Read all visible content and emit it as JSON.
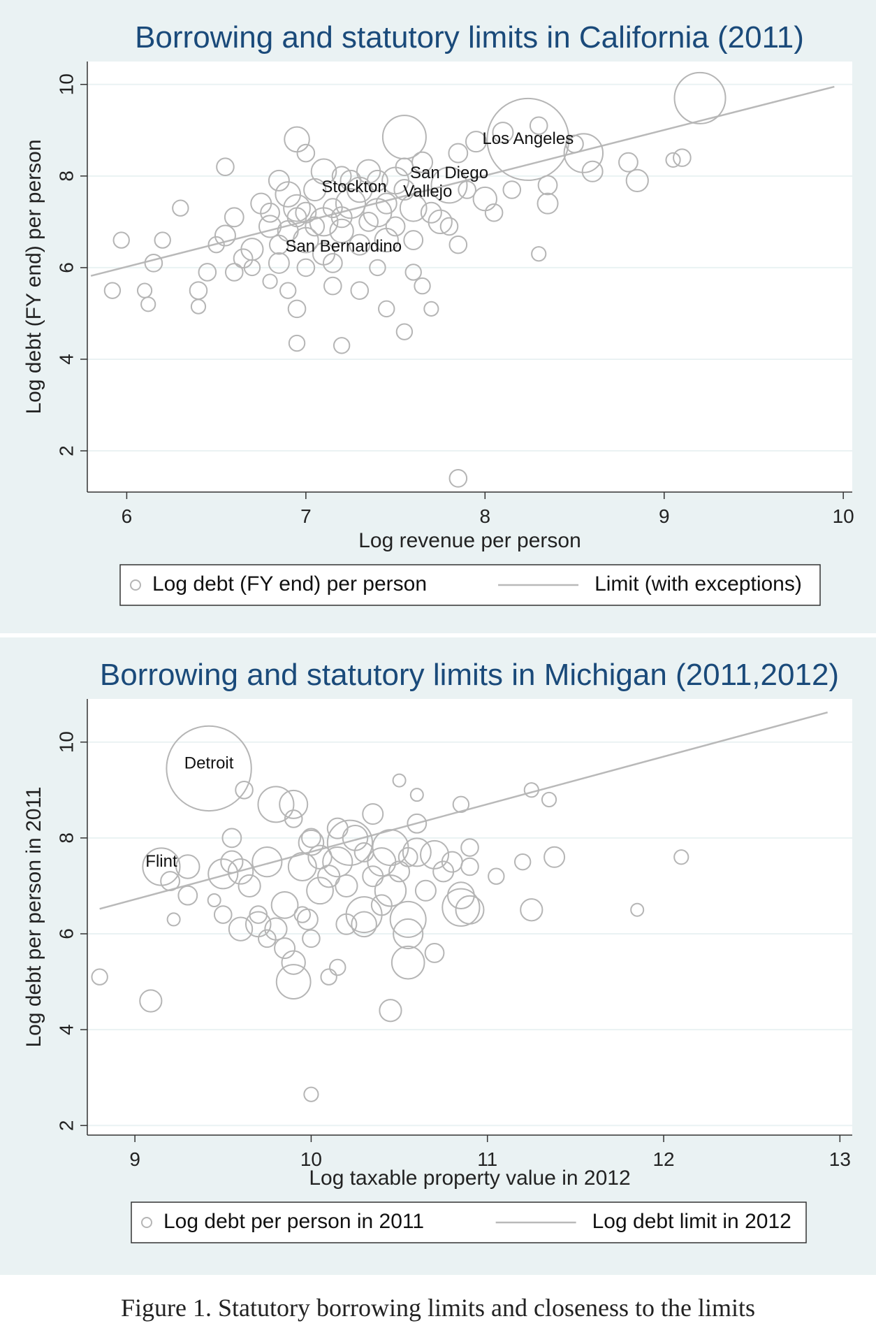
{
  "figure_caption": "Figure 1. Statutory borrowing limits and closeness to the limits",
  "chart_data": [
    {
      "type": "scatter",
      "title": "Borrowing and statutory limits in California (2011)",
      "xlabel": "Log revenue per person",
      "ylabel": "Log debt (FY end) per person",
      "xlim": [
        5.78,
        10.05
      ],
      "ylim": [
        1.1,
        10.5
      ],
      "xticks": [
        "6",
        "7",
        "8",
        "9",
        "10"
      ],
      "yticks": [
        "2",
        "4",
        "6",
        "8",
        "10"
      ],
      "grid": true,
      "legend": {
        "placement": "bottom",
        "entries": [
          "Log debt (FY end) per person",
          "Limit (with exceptions)"
        ]
      },
      "colors": {
        "marker": "#b5b5b5",
        "line": "#b9b9b9",
        "background": "#eaf2f3",
        "plot": "#ffffff"
      },
      "series": [
        {
          "name": "Log debt (FY end) per person",
          "marker": "hollow-circle-sized",
          "points": [
            [
              8.24,
              8.8,
              5
            ],
            [
              9.2,
              9.7,
              3
            ],
            [
              7.55,
              8.85,
              2.5
            ],
            [
              8.55,
              8.5,
              2.2
            ],
            [
              7.8,
              7.8,
              2
            ],
            [
              7.25,
              7.4,
              1.6
            ],
            [
              7.1,
              7.0,
              1.5
            ],
            [
              6.95,
              7.3,
              1.4
            ],
            [
              7.4,
              7.2,
              1.5
            ],
            [
              7.6,
              7.3,
              1.4
            ],
            [
              7.5,
              7.9,
              1.4
            ],
            [
              7.1,
              8.1,
              1.3
            ],
            [
              6.9,
              7.6,
              1.3
            ],
            [
              7.3,
              7.7,
              1.3
            ],
            [
              7.0,
              6.6,
              1.3
            ],
            [
              7.2,
              6.8,
              1.2
            ],
            [
              7.45,
              6.6,
              1.2
            ],
            [
              7.75,
              7.0,
              1.2
            ],
            [
              6.95,
              8.8,
              1.3
            ],
            [
              8.85,
              7.9,
              1.1
            ],
            [
              8.0,
              7.5,
              1.2
            ],
            [
              8.35,
              7.4,
              1.0
            ],
            [
              8.6,
              8.1,
              1.0
            ],
            [
              8.8,
              8.3,
              0.9
            ],
            [
              9.1,
              8.4,
              0.8
            ],
            [
              7.1,
              6.3,
              1.1
            ],
            [
              6.85,
              6.1,
              1.0
            ],
            [
              6.7,
              6.4,
              1.1
            ],
            [
              6.55,
              6.7,
              1.0
            ],
            [
              6.8,
              6.9,
              1.1
            ],
            [
              6.6,
              7.1,
              0.9
            ],
            [
              6.75,
              7.4,
              1.0
            ],
            [
              6.85,
              7.9,
              1.0
            ],
            [
              7.05,
              7.7,
              1.1
            ],
            [
              7.35,
              8.1,
              1.2
            ],
            [
              7.65,
              8.3,
              1.0
            ],
            [
              7.85,
              8.5,
              0.9
            ],
            [
              7.95,
              8.75,
              1.0
            ],
            [
              8.1,
              8.95,
              1.0
            ],
            [
              8.3,
              9.1,
              0.8
            ],
            [
              7.2,
              7.1,
              1.0
            ],
            [
              7.3,
              6.5,
              1.0
            ],
            [
              7.15,
              6.1,
              0.9
            ],
            [
              7.6,
              6.6,
              0.9
            ],
            [
              7.7,
              7.2,
              1.0
            ],
            [
              7.45,
              7.4,
              1.0
            ],
            [
              7.25,
              7.9,
              1.0
            ],
            [
              7.55,
              7.7,
              1.0
            ],
            [
              7.0,
              7.2,
              1.0
            ],
            [
              6.9,
              6.8,
              1.0
            ],
            [
              6.95,
              7.1,
              0.9
            ],
            [
              7.05,
              6.9,
              0.9
            ],
            [
              7.15,
              7.3,
              0.9
            ],
            [
              7.35,
              7.0,
              0.9
            ],
            [
              7.5,
              6.9,
              0.9
            ],
            [
              6.65,
              6.2,
              0.9
            ],
            [
              6.6,
              5.9,
              0.8
            ],
            [
              6.45,
              5.9,
              0.8
            ],
            [
              6.4,
              5.5,
              0.8
            ],
            [
              6.15,
              6.1,
              0.8
            ],
            [
              6.2,
              6.6,
              0.7
            ],
            [
              6.3,
              7.3,
              0.7
            ],
            [
              6.55,
              8.2,
              0.8
            ],
            [
              6.95,
              5.1,
              0.8
            ],
            [
              6.9,
              5.5,
              0.7
            ],
            [
              7.15,
              5.6,
              0.8
            ],
            [
              7.2,
              4.3,
              0.7
            ],
            [
              6.95,
              4.35,
              0.7
            ],
            [
              7.3,
              5.5,
              0.8
            ],
            [
              7.45,
              5.1,
              0.7
            ],
            [
              7.55,
              4.6,
              0.7
            ],
            [
              7.65,
              5.6,
              0.7
            ],
            [
              7.7,
              5.1,
              0.6
            ],
            [
              7.85,
              6.5,
              0.8
            ],
            [
              8.05,
              7.2,
              0.8
            ],
            [
              8.3,
              6.3,
              0.6
            ],
            [
              8.35,
              7.8,
              0.9
            ],
            [
              8.5,
              8.7,
              0.8
            ],
            [
              9.05,
              8.35,
              0.6
            ],
            [
              7.85,
              1.4,
              0.8
            ],
            [
              5.92,
              5.5,
              0.7
            ],
            [
              5.97,
              6.6,
              0.7
            ],
            [
              6.1,
              5.5,
              0.6
            ],
            [
              6.12,
              5.2,
              0.6
            ],
            [
              6.4,
              5.15,
              0.6
            ],
            [
              6.5,
              6.5,
              0.7
            ],
            [
              6.7,
              6.0,
              0.7
            ],
            [
              6.8,
              5.7,
              0.6
            ],
            [
              6.85,
              6.5,
              0.9
            ],
            [
              7.0,
              6.0,
              0.8
            ],
            [
              7.4,
              6.0,
              0.7
            ],
            [
              7.6,
              5.9,
              0.7
            ],
            [
              7.8,
              6.9,
              0.8
            ],
            [
              7.9,
              7.7,
              0.8
            ],
            [
              8.15,
              7.7,
              0.8
            ],
            [
              7.4,
              7.9,
              1.0
            ],
            [
              7.55,
              8.2,
              0.8
            ],
            [
              7.2,
              8.0,
              0.9
            ],
            [
              7.0,
              8.5,
              0.8
            ],
            [
              6.8,
              7.2,
              0.9
            ]
          ]
        },
        {
          "name": "Limit (with exceptions)",
          "marker": "line",
          "points": [
            [
              5.8,
              5.82
            ],
            [
              9.95,
              9.95
            ]
          ]
        }
      ],
      "annotations": [
        {
          "text": "Los Angeles",
          "x": 8.24,
          "y": 8.7
        },
        {
          "text": "San Diego",
          "x": 7.8,
          "y": 7.95
        },
        {
          "text": "Stockton",
          "x": 7.27,
          "y": 7.65
        },
        {
          "text": "Vallejo",
          "x": 7.68,
          "y": 7.55
        },
        {
          "text": "San Bernardino",
          "x": 7.21,
          "y": 6.35
        }
      ]
    },
    {
      "type": "scatter",
      "title": "Borrowing and statutory limits in Michigan (2011,2012)",
      "xlabel": "Log taxable property value in 2012",
      "ylabel": "Log debt per person in 2011",
      "xlim": [
        8.73,
        13.07
      ],
      "ylim": [
        1.8,
        10.9
      ],
      "xticks": [
        "9",
        "10",
        "11",
        "12",
        "13"
      ],
      "yticks": [
        "2",
        "4",
        "6",
        "8",
        "10"
      ],
      "grid": true,
      "legend": {
        "placement": "bottom",
        "entries": [
          "Log debt per person in 2011",
          "Log debt limit in 2012"
        ]
      },
      "colors": {
        "marker": "#b5b5b5",
        "line": "#b9b9b9",
        "background": "#eaf2f3",
        "plot": "#ffffff"
      },
      "series": [
        {
          "name": "Log debt per person in 2011",
          "marker": "hollow-circle-sized",
          "points": [
            [
              9.42,
              9.45,
              5.2
            ],
            [
              9.15,
              7.4,
              2.1
            ],
            [
              9.8,
              8.7,
              2.0
            ],
            [
              10.22,
              7.9,
              2.6
            ],
            [
              10.45,
              7.8,
              2.0
            ],
            [
              10.3,
              6.4,
              2.0
            ],
            [
              10.55,
              6.3,
              2.0
            ],
            [
              10.85,
              6.55,
              2.1
            ],
            [
              9.9,
              5.0,
              1.9
            ],
            [
              10.55,
              5.4,
              1.8
            ],
            [
              9.5,
              7.25,
              1.6
            ],
            [
              9.75,
              7.5,
              1.6
            ],
            [
              9.95,
              7.4,
              1.5
            ],
            [
              10.15,
              7.5,
              1.6
            ],
            [
              10.4,
              7.5,
              1.5
            ],
            [
              10.6,
              7.7,
              1.5
            ],
            [
              10.7,
              7.65,
              1.5
            ],
            [
              9.9,
              8.7,
              1.5
            ],
            [
              10.45,
              6.9,
              1.7
            ],
            [
              10.55,
              6.0,
              1.6
            ],
            [
              9.7,
              6.2,
              1.3
            ],
            [
              9.85,
              6.6,
              1.4
            ],
            [
              10.05,
              6.9,
              1.4
            ],
            [
              10.3,
              6.2,
              1.3
            ],
            [
              10.0,
              7.9,
              1.3
            ],
            [
              10.25,
              8.0,
              1.3
            ],
            [
              9.3,
              7.4,
              1.2
            ],
            [
              9.6,
              7.3,
              1.3
            ],
            [
              10.85,
              6.8,
              1.4
            ],
            [
              10.9,
              6.5,
              1.5
            ],
            [
              9.6,
              6.1,
              1.2
            ],
            [
              9.8,
              6.1,
              1.1
            ],
            [
              9.9,
              5.4,
              1.2
            ],
            [
              10.45,
              4.4,
              1.1
            ],
            [
              9.09,
              4.6,
              1.1
            ],
            [
              11.25,
              6.5,
              1.1
            ],
            [
              11.38,
              7.6,
              1.0
            ],
            [
              9.55,
              7.5,
              1.1
            ],
            [
              9.65,
              7.0,
              1.1
            ],
            [
              10.1,
              7.2,
              1.1
            ],
            [
              10.2,
              7.0,
              1.1
            ],
            [
              10.35,
              7.2,
              1.0
            ],
            [
              10.5,
              7.3,
              1.0
            ],
            [
              10.65,
              6.9,
              1.0
            ],
            [
              10.75,
              7.3,
              1.0
            ],
            [
              10.05,
              7.6,
              1.2
            ],
            [
              10.15,
              8.2,
              1.0
            ],
            [
              10.35,
              8.5,
              1.0
            ],
            [
              10.6,
              8.3,
              0.9
            ],
            [
              10.8,
              7.5,
              1.0
            ],
            [
              9.98,
              6.3,
              1.0
            ],
            [
              10.2,
              6.2,
              1.0
            ],
            [
              10.4,
              6.6,
              1.0
            ],
            [
              10.7,
              5.6,
              0.9
            ],
            [
              9.85,
              5.7,
              1.0
            ],
            [
              9.3,
              6.8,
              0.9
            ],
            [
              9.2,
              7.1,
              0.9
            ],
            [
              9.5,
              6.4,
              0.8
            ],
            [
              9.55,
              8.0,
              0.9
            ],
            [
              9.9,
              8.4,
              0.8
            ],
            [
              10.0,
              8.0,
              0.9
            ],
            [
              10.3,
              7.7,
              0.9
            ],
            [
              10.55,
              7.6,
              0.9
            ],
            [
              10.9,
              7.8,
              0.8
            ],
            [
              10.9,
              7.4,
              0.8
            ],
            [
              11.05,
              7.2,
              0.7
            ],
            [
              11.2,
              7.5,
              0.7
            ],
            [
              11.25,
              9.0,
              0.6
            ],
            [
              11.35,
              8.8,
              0.6
            ],
            [
              10.85,
              8.7,
              0.7
            ],
            [
              9.7,
              6.4,
              0.8
            ],
            [
              9.75,
              5.9,
              0.8
            ],
            [
              10.1,
              5.1,
              0.7
            ],
            [
              10.15,
              5.3,
              0.7
            ],
            [
              10.0,
              5.9,
              0.8
            ],
            [
              11.85,
              6.5,
              0.5
            ],
            [
              12.1,
              7.6,
              0.6
            ],
            [
              8.8,
              5.1,
              0.7
            ],
            [
              10.0,
              2.65,
              0.6
            ],
            [
              9.62,
              9.0,
              0.8
            ],
            [
              9.22,
              6.3,
              0.5
            ],
            [
              9.45,
              6.7,
              0.5
            ],
            [
              10.5,
              9.2,
              0.5
            ],
            [
              10.6,
              8.9,
              0.5
            ],
            [
              9.95,
              6.4,
              0.7
            ]
          ]
        },
        {
          "name": "Log debt limit in 2012",
          "marker": "line",
          "points": [
            [
              8.8,
              6.52
            ],
            [
              12.93,
              10.62
            ]
          ]
        }
      ],
      "annotations": [
        {
          "text": "Detroit",
          "x": 9.42,
          "y": 9.45
        },
        {
          "text": "Flint",
          "x": 9.15,
          "y": 7.4
        }
      ]
    }
  ]
}
